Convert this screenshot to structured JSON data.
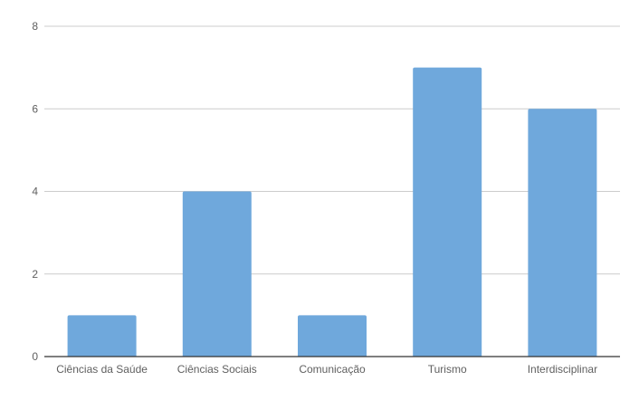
{
  "chart_data": {
    "type": "bar",
    "categories": [
      "Ciências da Saúde",
      "Ciências Sociais",
      "Comunicação",
      "Turismo",
      "Interdisciplinar"
    ],
    "values": [
      1,
      4,
      1,
      7,
      6
    ],
    "yticks": [
      "0",
      "2",
      "4",
      "6",
      "8"
    ],
    "ylim": [
      0,
      8
    ],
    "grid": true,
    "bar_color": "#6fa8dc",
    "title": "",
    "xlabel": "",
    "ylabel": ""
  }
}
